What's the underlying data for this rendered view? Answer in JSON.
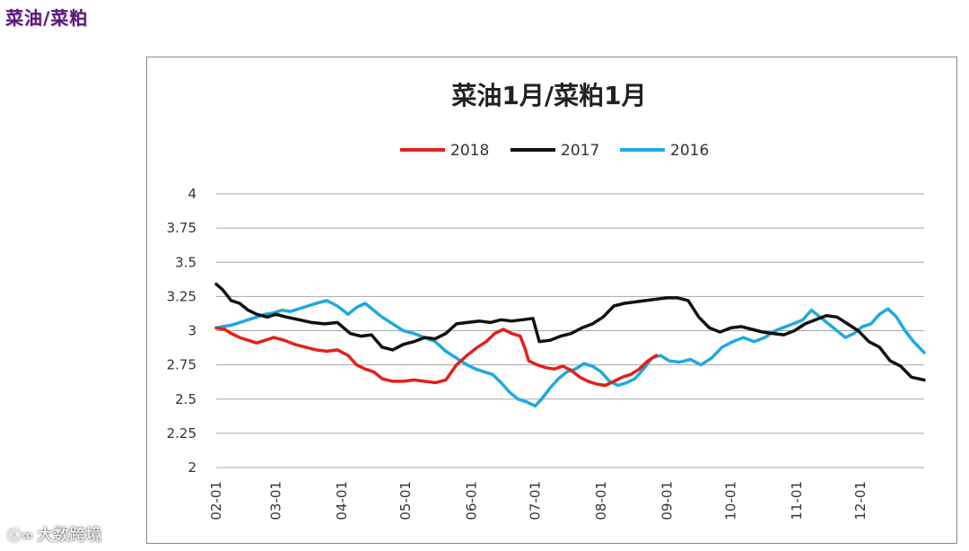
{
  "page": {
    "heading": "菜油/菜粕"
  },
  "watermark": {
    "icon": "logo-icon",
    "text": "大数跨境"
  },
  "colors": {
    "2018": "#e3201b",
    "2017": "#111111",
    "2016": "#21a8e0",
    "grid": "#a6a6a6"
  },
  "chart_data": {
    "type": "line",
    "title": "菜油1月/菜粕1月",
    "xlabel": "",
    "ylabel": "",
    "ylim": [
      2,
      4
    ],
    "y_ticks": [
      "4",
      "3.75",
      "3.5",
      "3.25",
      "3",
      "2.75",
      "2.5",
      "2.25",
      "2"
    ],
    "x_tick_labels": [
      "02-01",
      "03-01",
      "04-01",
      "05-01",
      "06-01",
      "07-01",
      "08-01",
      "09-01",
      "10-01",
      "11-01",
      "12-01"
    ],
    "x_range": [
      "02-01",
      "12-31"
    ],
    "grid": true,
    "legend_position": "top-center",
    "series": [
      {
        "name": "2018",
        "color": "#e3201b",
        "x": [
          "02-01",
          "02-05",
          "02-08",
          "02-12",
          "02-16",
          "02-20",
          "02-24",
          "02-28",
          "03-05",
          "03-10",
          "03-15",
          "03-20",
          "03-25",
          "03-30",
          "04-04",
          "04-08",
          "04-12",
          "04-16",
          "04-20",
          "04-25",
          "04-30",
          "05-05",
          "05-10",
          "05-15",
          "05-20",
          "05-25",
          "05-30",
          "06-04",
          "06-08",
          "06-12",
          "06-16",
          "06-20",
          "06-24",
          "06-26",
          "06-28",
          "07-02",
          "07-06",
          "07-10",
          "07-14",
          "07-18",
          "07-22",
          "07-26",
          "07-30",
          "08-03",
          "08-07",
          "08-11",
          "08-15",
          "08-19",
          "08-23",
          "08-27"
        ],
        "y": [
          3.02,
          3.01,
          2.98,
          2.95,
          2.93,
          2.91,
          2.93,
          2.95,
          2.93,
          2.9,
          2.88,
          2.86,
          2.85,
          2.86,
          2.82,
          2.75,
          2.72,
          2.7,
          2.65,
          2.63,
          2.63,
          2.64,
          2.63,
          2.62,
          2.64,
          2.75,
          2.82,
          2.88,
          2.92,
          2.98,
          3.01,
          2.98,
          2.96,
          2.88,
          2.78,
          2.75,
          2.73,
          2.72,
          2.74,
          2.71,
          2.66,
          2.63,
          2.61,
          2.6,
          2.63,
          2.66,
          2.68,
          2.72,
          2.78,
          2.82
        ]
      },
      {
        "name": "2017",
        "color": "#111111",
        "x": [
          "02-01",
          "02-04",
          "02-08",
          "02-12",
          "02-16",
          "02-20",
          "02-25",
          "03-01",
          "03-06",
          "03-12",
          "03-18",
          "03-24",
          "03-30",
          "04-05",
          "04-10",
          "04-15",
          "04-20",
          "04-25",
          "04-30",
          "05-05",
          "05-10",
          "05-15",
          "05-20",
          "05-25",
          "05-30",
          "06-05",
          "06-10",
          "06-15",
          "06-20",
          "06-25",
          "06-30",
          "07-03",
          "07-08",
          "07-13",
          "07-18",
          "07-23",
          "07-28",
          "08-02",
          "08-07",
          "08-12",
          "08-17",
          "08-22",
          "08-27",
          "09-01",
          "09-06",
          "09-11",
          "09-16",
          "09-21",
          "09-26",
          "10-01",
          "10-06",
          "10-11",
          "10-16",
          "10-21",
          "10-26",
          "10-31",
          "11-05",
          "11-10",
          "11-15",
          "11-20",
          "11-25",
          "11-30",
          "12-05",
          "12-10",
          "12-15",
          "12-20",
          "12-25",
          "12-31"
        ],
        "y": [
          3.34,
          3.3,
          3.22,
          3.2,
          3.15,
          3.12,
          3.1,
          3.12,
          3.1,
          3.08,
          3.06,
          3.05,
          3.06,
          2.98,
          2.96,
          2.97,
          2.88,
          2.86,
          2.9,
          2.92,
          2.95,
          2.94,
          2.98,
          3.05,
          3.06,
          3.07,
          3.06,
          3.08,
          3.07,
          3.08,
          3.09,
          2.92,
          2.93,
          2.96,
          2.98,
          3.02,
          3.05,
          3.1,
          3.18,
          3.2,
          3.21,
          3.22,
          3.23,
          3.24,
          3.24,
          3.22,
          3.1,
          3.02,
          2.99,
          3.02,
          3.03,
          3.01,
          2.99,
          2.98,
          2.97,
          3.0,
          3.05,
          3.08,
          3.11,
          3.1,
          3.05,
          3.0,
          2.92,
          2.88,
          2.78,
          2.74,
          2.66,
          2.64
        ]
      },
      {
        "name": "2016",
        "color": "#21a8e0",
        "x": [
          "02-01",
          "02-04",
          "02-08",
          "02-12",
          "02-16",
          "02-20",
          "02-24",
          "02-28",
          "03-04",
          "03-08",
          "03-12",
          "03-16",
          "03-20",
          "03-25",
          "03-30",
          "04-04",
          "04-08",
          "04-12",
          "04-16",
          "04-20",
          "04-25",
          "04-30",
          "05-05",
          "05-10",
          "05-15",
          "05-20",
          "05-25",
          "05-30",
          "06-03",
          "06-07",
          "06-11",
          "06-15",
          "06-19",
          "06-23",
          "06-27",
          "07-01",
          "07-04",
          "07-08",
          "07-12",
          "07-16",
          "07-20",
          "07-24",
          "07-28",
          "08-01",
          "08-05",
          "08-09",
          "08-13",
          "08-17",
          "08-21",
          "08-25",
          "08-29",
          "09-02",
          "09-07",
          "09-12",
          "09-17",
          "09-22",
          "09-27",
          "10-02",
          "10-07",
          "10-12",
          "10-17",
          "10-22",
          "10-27",
          "11-01",
          "11-04",
          "11-08",
          "11-12",
          "11-16",
          "11-20",
          "11-24",
          "11-28",
          "12-02",
          "12-06",
          "12-10",
          "12-14",
          "12-18",
          "12-22",
          "12-26",
          "12-31"
        ],
        "y": [
          3.02,
          3.03,
          3.04,
          3.06,
          3.08,
          3.1,
          3.12,
          3.13,
          3.15,
          3.14,
          3.16,
          3.18,
          3.2,
          3.22,
          3.18,
          3.12,
          3.17,
          3.2,
          3.15,
          3.1,
          3.05,
          3.0,
          2.98,
          2.95,
          2.92,
          2.85,
          2.8,
          2.75,
          2.72,
          2.7,
          2.68,
          2.62,
          2.55,
          2.5,
          2.48,
          2.45,
          2.5,
          2.58,
          2.65,
          2.7,
          2.72,
          2.76,
          2.74,
          2.7,
          2.63,
          2.6,
          2.62,
          2.65,
          2.72,
          2.8,
          2.82,
          2.78,
          2.77,
          2.79,
          2.75,
          2.8,
          2.88,
          2.92,
          2.95,
          2.92,
          2.95,
          3.0,
          3.03,
          3.06,
          3.08,
          3.15,
          3.1,
          3.05,
          3.0,
          2.95,
          2.98,
          3.03,
          3.05,
          3.12,
          3.16,
          3.1,
          3.0,
          2.92,
          2.84
        ]
      }
    ]
  }
}
